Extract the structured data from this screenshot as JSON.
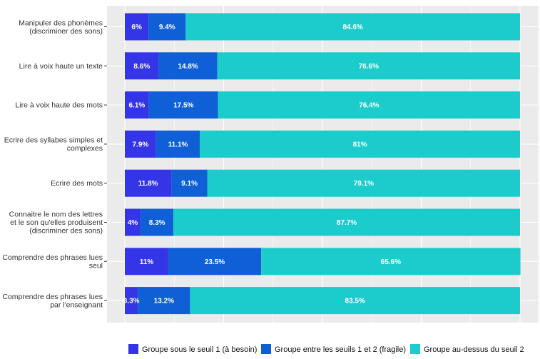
{
  "chart_data": {
    "type": "bar",
    "orientation": "horizontal",
    "stacked": true,
    "grid": true,
    "legend_position": "bottom",
    "xlim": [
      0,
      100
    ],
    "categories": [
      [
        "Manipuler des phonèmes",
        "(discriminer des sons)"
      ],
      [
        "Lire à voix haute un texte"
      ],
      [
        "Lire à voix haute des mots"
      ],
      [
        "Ecrire des syllabes simples et",
        "complexes"
      ],
      [
        "Ecrire des mots"
      ],
      [
        "Connaitre le nom des lettres",
        "et le son qu'elles produisent",
        "(discriminer des sons)"
      ],
      [
        "Comprendre des phrases lues",
        "seul"
      ],
      [
        "Comprendre des phrases lues",
        "par l'enseignant"
      ]
    ],
    "series": [
      {
        "name": "Groupe sous le seuil 1 (à besoin)",
        "color": "#3535e8",
        "values": [
          6,
          8.6,
          6.1,
          7.9,
          11.8,
          4,
          11,
          3.3
        ],
        "labels": [
          "6%",
          "8.6%",
          "6.1%",
          "7.9%",
          "11.8%",
          "4%",
          "11%",
          "3.3%"
        ]
      },
      {
        "name": "Groupe entre les seuils 1 et 2 (fragile)",
        "color": "#0f5fd6",
        "values": [
          9.4,
          14.8,
          17.5,
          11.1,
          9.1,
          8.3,
          23.5,
          13.2
        ],
        "labels": [
          "9.4%",
          "14.8%",
          "17.5%",
          "11.1%",
          "9.1%",
          "8.3%",
          "23.5%",
          "13.2%"
        ]
      },
      {
        "name": "Groupe au-dessus du seuil 2",
        "color": "#1ccccc",
        "values": [
          84.6,
          76.6,
          76.4,
          81,
          79.1,
          87.7,
          65.6,
          83.5
        ],
        "labels": [
          "84.6%",
          "76.6%",
          "76.4%",
          "81%",
          "79.1%",
          "87.7%",
          "65.6%",
          "83.5%"
        ]
      }
    ]
  }
}
